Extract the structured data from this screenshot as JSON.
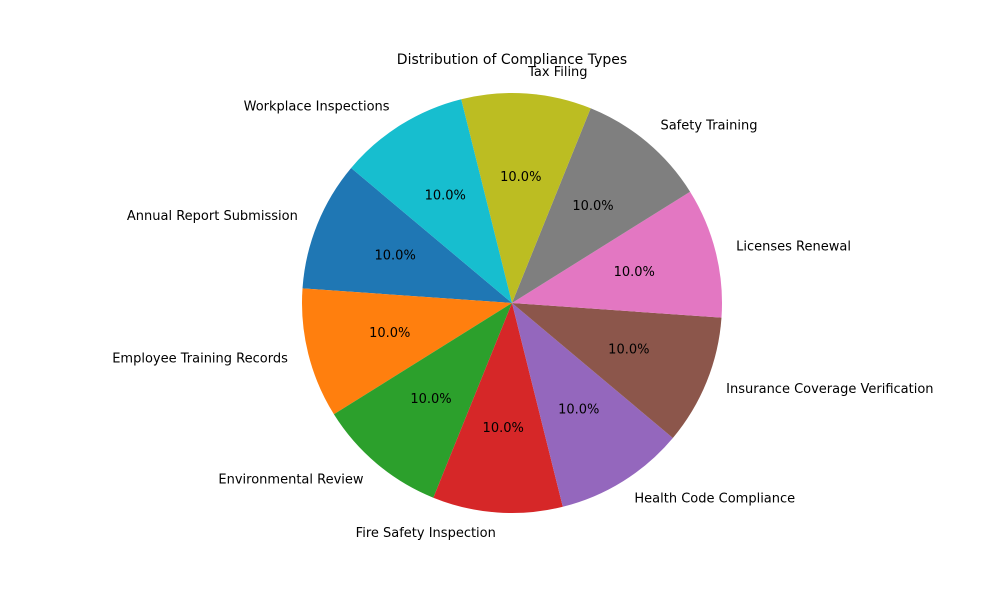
{
  "chart_data": {
    "type": "pie",
    "title": "Distribution of Compliance Types",
    "categories": [
      "Annual Report Submission",
      "Employee Training Records",
      "Environmental Review",
      "Fire Safety Inspection",
      "Health Code Compliance",
      "Insurance Coverage Verification",
      "Licenses Renewal",
      "Safety Training",
      "Tax Filing",
      "Workplace Inspections"
    ],
    "values": [
      10,
      10,
      10,
      10,
      10,
      10,
      10,
      10,
      10,
      10
    ],
    "percent_labels": [
      "10.0%",
      "10.0%",
      "10.0%",
      "10.0%",
      "10.0%",
      "10.0%",
      "10.0%",
      "10.0%",
      "10.0%",
      "10.0%"
    ],
    "colors": [
      "#1f77b4",
      "#ff7f0e",
      "#2ca02c",
      "#d62728",
      "#9467bd",
      "#8c564b",
      "#e377c2",
      "#7f7f7f",
      "#bcbd22",
      "#17becf"
    ],
    "start_angle_deg": 140,
    "direction": "counterclockwise"
  }
}
